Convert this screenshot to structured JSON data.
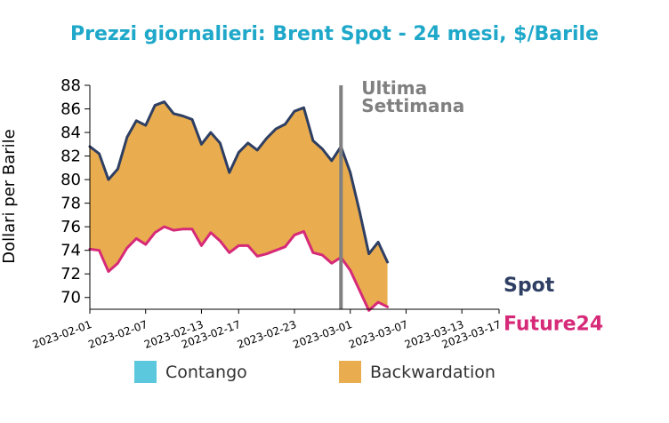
{
  "chart_data": {
    "type": "area",
    "title": "Prezzi giornalieri: Brent Spot - 24 mesi, $/Barile",
    "ylabel": "Dollari per Barile",
    "xlabel": "",
    "ylim": [
      69,
      88
    ],
    "yticks": [
      70,
      72,
      74,
      76,
      78,
      80,
      82,
      84,
      86,
      88
    ],
    "xlim": [
      "2023-02-01",
      "2023-03-17"
    ],
    "xticks": [
      "2023-02-01",
      "2023-02-07",
      "2023-02-13",
      "2023-02-17",
      "2023-02-23",
      "2023-03-01",
      "2023-03-07",
      "2023-03-13",
      "2023-03-17"
    ],
    "grid": false,
    "series": [
      {
        "name": "Spot",
        "color": "#2e3f63",
        "points": [
          [
            "2023-02-01",
            82.8
          ],
          [
            "2023-02-02",
            82.2
          ],
          [
            "2023-02-03",
            80.0
          ],
          [
            "2023-02-04",
            80.9
          ],
          [
            "2023-02-05",
            83.6
          ],
          [
            "2023-02-06",
            85.0
          ],
          [
            "2023-02-07",
            84.6
          ],
          [
            "2023-02-08",
            86.3
          ],
          [
            "2023-02-09",
            86.6
          ],
          [
            "2023-02-10",
            85.6
          ],
          [
            "2023-02-11",
            85.4
          ],
          [
            "2023-02-12",
            85.1
          ],
          [
            "2023-02-13",
            83.0
          ],
          [
            "2023-02-14",
            84.0
          ],
          [
            "2023-02-15",
            83.1
          ],
          [
            "2023-02-16",
            80.6
          ],
          [
            "2023-02-17",
            82.3
          ],
          [
            "2023-02-18",
            83.1
          ],
          [
            "2023-02-19",
            82.5
          ],
          [
            "2023-02-20",
            83.5
          ],
          [
            "2023-02-21",
            84.3
          ],
          [
            "2023-02-22",
            84.7
          ],
          [
            "2023-02-23",
            85.8
          ],
          [
            "2023-02-24",
            86.1
          ],
          [
            "2023-02-25",
            83.3
          ],
          [
            "2023-02-26",
            82.6
          ],
          [
            "2023-02-27",
            81.6
          ],
          [
            "2023-02-28",
            82.8
          ],
          [
            "2023-03-01",
            80.6
          ],
          [
            "2023-03-02",
            77.3
          ],
          [
            "2023-03-03",
            73.7
          ],
          [
            "2023-03-04",
            74.7
          ],
          [
            "2023-03-05",
            73.0
          ]
        ]
      },
      {
        "name": "Future24",
        "color": "#d62a78",
        "points": [
          [
            "2023-02-01",
            74.1
          ],
          [
            "2023-02-02",
            74.0
          ],
          [
            "2023-02-03",
            72.2
          ],
          [
            "2023-02-04",
            72.9
          ],
          [
            "2023-02-05",
            74.2
          ],
          [
            "2023-02-06",
            75.0
          ],
          [
            "2023-02-07",
            74.5
          ],
          [
            "2023-02-08",
            75.5
          ],
          [
            "2023-02-09",
            76.0
          ],
          [
            "2023-02-10",
            75.7
          ],
          [
            "2023-02-11",
            75.8
          ],
          [
            "2023-02-12",
            75.8
          ],
          [
            "2023-02-13",
            74.4
          ],
          [
            "2023-02-14",
            75.5
          ],
          [
            "2023-02-15",
            74.8
          ],
          [
            "2023-02-16",
            73.8
          ],
          [
            "2023-02-17",
            74.4
          ],
          [
            "2023-02-18",
            74.4
          ],
          [
            "2023-02-19",
            73.5
          ],
          [
            "2023-02-20",
            73.7
          ],
          [
            "2023-02-21",
            74.0
          ],
          [
            "2023-02-22",
            74.3
          ],
          [
            "2023-02-23",
            75.3
          ],
          [
            "2023-02-24",
            75.6
          ],
          [
            "2023-02-25",
            73.8
          ],
          [
            "2023-02-26",
            73.6
          ],
          [
            "2023-02-27",
            72.9
          ],
          [
            "2023-02-28",
            73.4
          ],
          [
            "2023-03-01",
            72.3
          ],
          [
            "2023-03-02",
            70.6
          ],
          [
            "2023-03-03",
            68.9
          ],
          [
            "2023-03-04",
            69.6
          ],
          [
            "2023-03-05",
            69.2
          ]
        ]
      }
    ],
    "vline": {
      "x": "2023-02-28",
      "label": [
        "Ultima",
        "Settimana"
      ],
      "color": "#808080"
    },
    "fills": {
      "contango": "#5bc8de",
      "backwardation": "#e9ac4e"
    },
    "legend": {
      "position": "bottom",
      "items": [
        "Contango",
        "Backwardation"
      ]
    }
  },
  "colors": {
    "title": "#1fa8c9",
    "axis": "#000000"
  }
}
